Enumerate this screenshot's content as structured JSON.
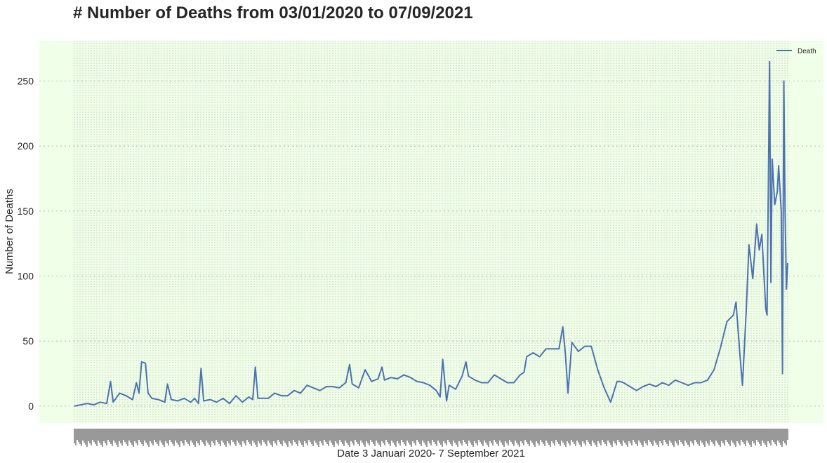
{
  "chart_data": {
    "type": "line",
    "title": "# Number of Deaths from 03/01/2020 to 07/09/2021",
    "xlabel": "Date 3 Januari 2020- 7 September 2021",
    "ylabel": "Number of Deaths",
    "ylim": [
      -13,
      281
    ],
    "yticks": [
      0,
      50,
      100,
      150,
      200,
      250
    ],
    "xlim": [
      0,
      552
    ],
    "grid": true,
    "legend_position": "top-right",
    "background_color": "#f0ffe8",
    "series_color": "#4c72b0",
    "series": [
      {
        "name": "Death",
        "points": [
          [
            0,
            0
          ],
          [
            5,
            1
          ],
          [
            10,
            2
          ],
          [
            15,
            1
          ],
          [
            20,
            3
          ],
          [
            25,
            2
          ],
          [
            28,
            19
          ],
          [
            30,
            3
          ],
          [
            35,
            10
          ],
          [
            40,
            8
          ],
          [
            45,
            5
          ],
          [
            48,
            18
          ],
          [
            50,
            10
          ],
          [
            52,
            34
          ],
          [
            55,
            33
          ],
          [
            57,
            10
          ],
          [
            60,
            6
          ],
          [
            65,
            5
          ],
          [
            70,
            3
          ],
          [
            72,
            17
          ],
          [
            75,
            5
          ],
          [
            80,
            4
          ],
          [
            85,
            6
          ],
          [
            90,
            3
          ],
          [
            93,
            6
          ],
          [
            96,
            2
          ],
          [
            98,
            29
          ],
          [
            100,
            4
          ],
          [
            105,
            5
          ],
          [
            110,
            3
          ],
          [
            115,
            6
          ],
          [
            120,
            2
          ],
          [
            125,
            8
          ],
          [
            130,
            3
          ],
          [
            135,
            7
          ],
          [
            138,
            5
          ],
          [
            140,
            30
          ],
          [
            142,
            6
          ],
          [
            150,
            6
          ],
          [
            155,
            10
          ],
          [
            160,
            8
          ],
          [
            165,
            8
          ],
          [
            170,
            12
          ],
          [
            175,
            10
          ],
          [
            180,
            16
          ],
          [
            185,
            14
          ],
          [
            190,
            12
          ],
          [
            195,
            15
          ],
          [
            200,
            15
          ],
          [
            205,
            14
          ],
          [
            210,
            18
          ],
          [
            213,
            32
          ],
          [
            215,
            17
          ],
          [
            220,
            14
          ],
          [
            225,
            28
          ],
          [
            230,
            19
          ],
          [
            235,
            21
          ],
          [
            238,
            30
          ],
          [
            240,
            20
          ],
          [
            245,
            22
          ],
          [
            250,
            21
          ],
          [
            255,
            24
          ],
          [
            260,
            22
          ],
          [
            265,
            19
          ],
          [
            270,
            18
          ],
          [
            275,
            16
          ],
          [
            280,
            12
          ],
          [
            283,
            7
          ],
          [
            285,
            36
          ],
          [
            288,
            4
          ],
          [
            290,
            16
          ],
          [
            295,
            13
          ],
          [
            300,
            23
          ],
          [
            303,
            34
          ],
          [
            305,
            23
          ],
          [
            310,
            20
          ],
          [
            315,
            18
          ],
          [
            320,
            18
          ],
          [
            325,
            24
          ],
          [
            330,
            21
          ],
          [
            335,
            18
          ],
          [
            340,
            18
          ],
          [
            345,
            24
          ],
          [
            348,
            26
          ],
          [
            350,
            38
          ],
          [
            355,
            41
          ],
          [
            360,
            38
          ],
          [
            365,
            44
          ],
          [
            370,
            44
          ],
          [
            375,
            44
          ],
          [
            378,
            61
          ],
          [
            380,
            40
          ],
          [
            382,
            10
          ],
          [
            385,
            49
          ],
          [
            390,
            42
          ],
          [
            395,
            46
          ],
          [
            400,
            46
          ],
          [
            405,
            28
          ],
          [
            410,
            14
          ],
          [
            415,
            3
          ],
          [
            420,
            19
          ],
          [
            422,
            19
          ],
          [
            425,
            18
          ],
          [
            430,
            15
          ],
          [
            435,
            12
          ],
          [
            440,
            15
          ],
          [
            445,
            17
          ],
          [
            450,
            15
          ],
          [
            455,
            18
          ],
          [
            460,
            16
          ],
          [
            465,
            20
          ],
          [
            470,
            18
          ],
          [
            475,
            16
          ],
          [
            480,
            18
          ],
          [
            485,
            18
          ],
          [
            490,
            20
          ],
          [
            495,
            28
          ],
          [
            500,
            45
          ],
          [
            505,
            65
          ],
          [
            510,
            70
          ],
          [
            512,
            80
          ],
          [
            515,
            40
          ],
          [
            517,
            16
          ],
          [
            520,
            75
          ],
          [
            522,
            124
          ],
          [
            525,
            98
          ],
          [
            528,
            140
          ],
          [
            530,
            120
          ],
          [
            532,
            132
          ],
          [
            535,
            75
          ],
          [
            536,
            70
          ],
          [
            538,
            265
          ],
          [
            539,
            95
          ],
          [
            540,
            190
          ],
          [
            542,
            155
          ],
          [
            544,
            165
          ],
          [
            545,
            185
          ],
          [
            547,
            150
          ],
          [
            548,
            25
          ],
          [
            549,
            250
          ],
          [
            550,
            150
          ],
          [
            551,
            90
          ],
          [
            552,
            110
          ]
        ]
      }
    ]
  }
}
